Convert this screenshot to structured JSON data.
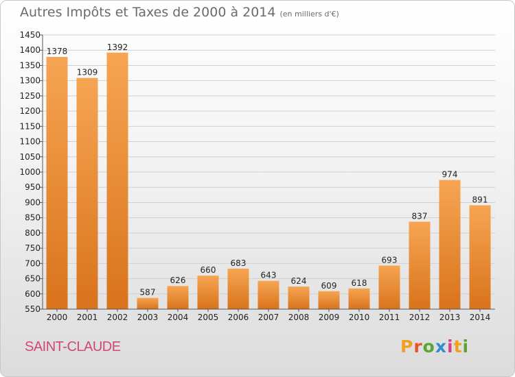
{
  "header": {
    "title": "Autres Impôts et Taxes de 2000 à 2014",
    "unit": "(en milliers d'€)"
  },
  "footer": {
    "city": "SAINT-CLAUDE",
    "logo": [
      "P",
      "r",
      "o",
      "x",
      "i",
      "t",
      "i"
    ],
    "logo_colors": [
      "#f0a020",
      "#e8552a",
      "#5aa532",
      "#2e8fd0",
      "#e03c8a",
      "#f0a020",
      "#5aa532"
    ]
  },
  "colors": {
    "bar_light": "#f6a553",
    "bar_dark": "#d9731c",
    "grid": "#d0d0d0",
    "axis": "#555555"
  },
  "chart_data": {
    "type": "bar",
    "title": "Autres Impôts et Taxes de 2000 à 2014",
    "subtitle": "(en milliers d'€)",
    "categories": [
      "2000",
      "2001",
      "2002",
      "2003",
      "2004",
      "2005",
      "2006",
      "2007",
      "2008",
      "2009",
      "2010",
      "2011",
      "2012",
      "2013",
      "2014"
    ],
    "values": [
      1378,
      1309,
      1392,
      587,
      626,
      660,
      683,
      643,
      624,
      609,
      618,
      693,
      837,
      974,
      891
    ],
    "ylim": [
      550,
      1450
    ],
    "yticks": [
      550,
      600,
      650,
      700,
      750,
      800,
      850,
      900,
      950,
      1000,
      1050,
      1100,
      1150,
      1200,
      1250,
      1300,
      1350,
      1400,
      1450
    ],
    "grid": true,
    "legend": "none"
  }
}
